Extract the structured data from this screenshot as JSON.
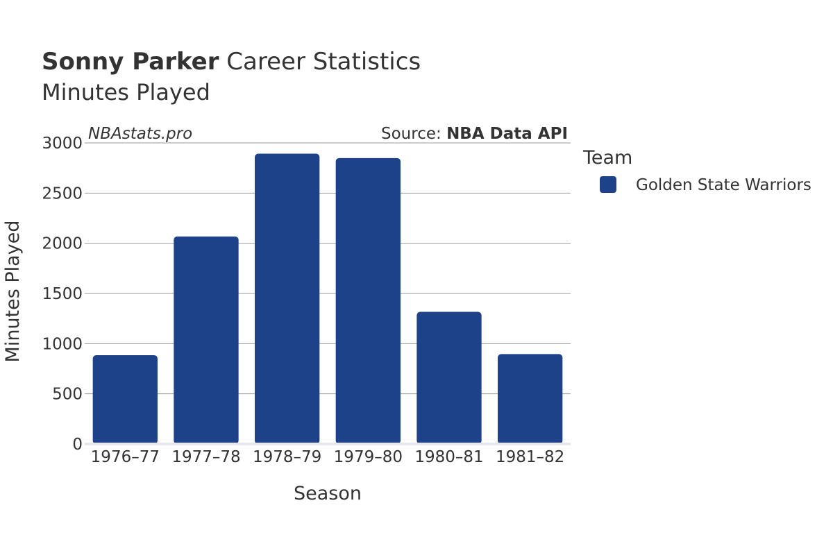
{
  "header": {
    "title_player": "Sonny Parker",
    "title_rest": " Career Statistics",
    "subtitle": "Minutes Played"
  },
  "watermark": "NBAstats.pro",
  "source": {
    "prefix": "Source: ",
    "name": "NBA Data API"
  },
  "legend": {
    "title": "Team",
    "items": [
      {
        "label": "Golden State Warriors",
        "color": "#1d428a"
      }
    ]
  },
  "chart_data": {
    "type": "bar",
    "title": "Sonny Parker Career Statistics",
    "subtitle": "Minutes Played",
    "xlabel": "Season",
    "ylabel": "Minutes Played",
    "categories": [
      "1976–77",
      "1977–78",
      "1978–79",
      "1979–80",
      "1980–81",
      "1981–82"
    ],
    "series": [
      {
        "name": "Golden State Warriors",
        "color": "#1d428a",
        "values": [
          885,
          2068,
          2893,
          2849,
          1317,
          896
        ]
      }
    ],
    "ylim": [
      0,
      3000
    ],
    "yticks": [
      0,
      500,
      1000,
      1500,
      2000,
      2500,
      3000
    ],
    "grid": true,
    "legend_position": "right"
  }
}
